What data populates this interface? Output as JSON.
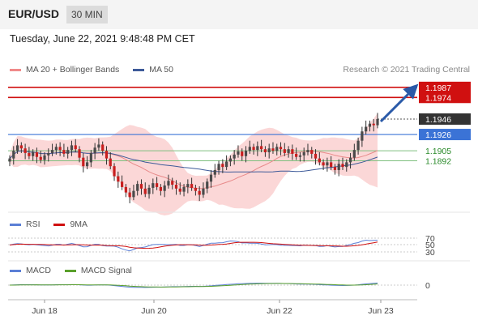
{
  "header": {
    "pair": "EUR/USD",
    "timeframe": "30 MIN"
  },
  "timestamp": "Tuesday, June 22, 2021 9:48:48 PM CET",
  "credit": "Research © 2021 Trading Central",
  "legends": {
    "main": [
      {
        "label": "MA 20 + Bollinger Bands",
        "color": "#f08a8a"
      },
      {
        "label": "MA 50",
        "color": "#3d5a99"
      }
    ],
    "rsi": [
      {
        "label": "RSI",
        "color": "#5b7fd6"
      },
      {
        "label": "9MA",
        "color": "#d01010"
      }
    ],
    "macd": [
      {
        "label": "MACD",
        "color": "#5b7fd6"
      },
      {
        "label": "MACD Signal",
        "color": "#5aa02c"
      }
    ]
  },
  "chart_data": {
    "type": "candlestick",
    "price_levels": [
      {
        "label": "1.1987",
        "value": 1.1987,
        "style": "resistance",
        "color": "#d01010"
      },
      {
        "label": "1.1974",
        "value": 1.1974,
        "style": "resistance",
        "color": "#d01010"
      },
      {
        "label": "1.1946",
        "value": 1.1946,
        "style": "last",
        "color": "#333333"
      },
      {
        "label": "1.1926",
        "value": 1.1926,
        "style": "pivot",
        "color": "#3b73d6"
      },
      {
        "label": "1.1905",
        "value": 1.1905,
        "style": "support",
        "color": "#2a8a2a"
      },
      {
        "label": "1.1892",
        "value": 1.1892,
        "style": "support",
        "color": "#2a8a2a"
      }
    ],
    "x_ticks": [
      "Jun 18",
      "Jun 20",
      "Jun 22",
      "Jun 23"
    ],
    "rsi_levels": [
      "70",
      "50",
      "30"
    ],
    "macd_level": "0",
    "closes": [
      1.1895,
      1.1905,
      1.1912,
      1.1908,
      1.1902,
      1.1898,
      1.1903,
      1.1897,
      1.1893,
      1.1899,
      1.1902,
      1.1906,
      1.191,
      1.1906,
      1.1901,
      1.1906,
      1.1912,
      1.1907,
      1.1896,
      1.1885,
      1.189,
      1.1902,
      1.1909,
      1.1913,
      1.1905,
      1.1895,
      1.1885,
      1.1872,
      1.1865,
      1.1858,
      1.1851,
      1.1845,
      1.1853,
      1.1862,
      1.1856,
      1.1849,
      1.1857,
      1.1863,
      1.1858,
      1.1853,
      1.186,
      1.1866,
      1.1861,
      1.1856,
      1.1852,
      1.1858,
      1.1862,
      1.1857,
      1.1853,
      1.1848,
      1.1856,
      1.1865,
      1.1874,
      1.188,
      1.1888,
      1.1884,
      1.1891,
      1.1895,
      1.19,
      1.1904,
      1.1898,
      1.1905,
      1.191,
      1.1906,
      1.1911,
      1.1907,
      1.1903,
      1.1908,
      1.1905,
      1.191,
      1.1907,
      1.1902,
      1.1907,
      1.1901,
      1.1897,
      1.1899,
      1.1903,
      1.1906,
      1.1901,
      1.1895,
      1.189,
      1.1886,
      1.189,
      1.1884,
      1.188,
      1.1888,
      1.1884,
      1.189,
      1.1896,
      1.1906,
      1.1918,
      1.193,
      1.1936,
      1.194,
      1.1938,
      1.1946
    ]
  }
}
